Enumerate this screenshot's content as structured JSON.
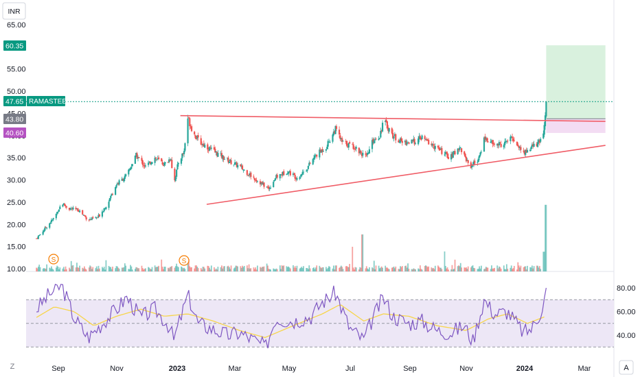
{
  "currency_button": "INR",
  "ticker": "RAMASTEEL",
  "corner_left": "Z",
  "corner_right": "A",
  "colors": {
    "up": "#26a69a",
    "down": "#ef5350",
    "trendline": "#f05c66",
    "rsi_line": "#7e57c2",
    "rsi_ma": "#f7d54a",
    "rsi_band": "#ede7f6",
    "target_zone": "#d9f1de",
    "stop_zone": "#f3dcf3",
    "last_price_tag": "#089981",
    "entry_tag": "#787b86",
    "stop_tag": "#b553c2",
    "split_marker": "#f57c00"
  },
  "price_tags": {
    "target": "60.35",
    "last": "47.65",
    "entry": "43.80",
    "stop": "40.60"
  },
  "split_markers": [
    "S",
    "S"
  ],
  "chart_data": [
    {
      "type": "candlestick",
      "title": "",
      "y_axis_ticks": [
        "10.00",
        "15.00",
        "20.00",
        "25.00",
        "30.00",
        "35.00",
        "40.00",
        "45.00",
        "50.00",
        "55.00",
        "65.00"
      ],
      "ylim": [
        10,
        66.5
      ],
      "x_axis_ticks": [
        "Sep",
        "Nov",
        "2023",
        "Mar",
        "May",
        "Jul",
        "Sep",
        "Nov",
        "2024",
        "Mar"
      ],
      "x_axis_bold": [
        "2023",
        "2024"
      ],
      "series": {
        "close_path": [
          [
            "2022-08-01",
            16.8
          ],
          [
            "2022-08-10",
            19.0
          ],
          [
            "2022-08-20",
            21.5
          ],
          [
            "2022-08-28",
            24.8
          ],
          [
            "2022-09-05",
            23.5
          ],
          [
            "2022-09-15",
            23.2
          ],
          [
            "2022-09-25",
            21.0
          ],
          [
            "2022-10-05",
            21.5
          ],
          [
            "2022-10-15",
            24.5
          ],
          [
            "2022-10-25",
            29.0
          ],
          [
            "2022-11-05",
            31.0
          ],
          [
            "2022-11-15",
            35.5
          ],
          [
            "2022-11-25",
            33.0
          ],
          [
            "2022-12-05",
            35.0
          ],
          [
            "2022-12-15",
            33.5
          ],
          [
            "2022-12-22",
            35.0
          ],
          [
            "2022-12-25",
            29.0
          ],
          [
            "2022-12-30",
            34.0
          ],
          [
            "2023-01-05",
            36.5
          ],
          [
            "2023-01-09",
            44.0
          ],
          [
            "2023-01-15",
            40.5
          ],
          [
            "2023-01-22",
            38.5
          ],
          [
            "2023-02-05",
            36.5
          ],
          [
            "2023-02-20",
            34.5
          ],
          [
            "2023-03-05",
            33.0
          ],
          [
            "2023-03-20",
            30.5
          ],
          [
            "2023-04-05",
            28.0
          ],
          [
            "2023-04-12",
            30.5
          ],
          [
            "2023-04-25",
            32.0
          ],
          [
            "2023-05-05",
            30.5
          ],
          [
            "2023-05-15",
            32.5
          ],
          [
            "2023-05-25",
            35.5
          ],
          [
            "2023-06-05",
            37.5
          ],
          [
            "2023-06-15",
            41.5
          ],
          [
            "2023-06-22",
            38.5
          ],
          [
            "2023-07-05",
            37.5
          ],
          [
            "2023-07-18",
            35.0
          ],
          [
            "2023-07-25",
            39.0
          ],
          [
            "2023-08-01",
            40.0
          ],
          [
            "2023-08-05",
            43.5
          ],
          [
            "2023-08-15",
            40.0
          ],
          [
            "2023-08-25",
            38.5
          ],
          [
            "2023-09-05",
            38.5
          ],
          [
            "2023-09-15",
            39.5
          ],
          [
            "2023-09-25",
            38.0
          ],
          [
            "2023-10-05",
            36.5
          ],
          [
            "2023-10-15",
            35.0
          ],
          [
            "2023-10-25",
            37.5
          ],
          [
            "2023-11-05",
            33.0
          ],
          [
            "2023-11-15",
            35.0
          ],
          [
            "2023-11-20",
            39.5
          ],
          [
            "2023-11-30",
            38.0
          ],
          [
            "2023-12-10",
            38.0
          ],
          [
            "2023-12-20",
            39.5
          ],
          [
            "2024-01-01",
            36.0
          ],
          [
            "2024-01-10",
            37.5
          ],
          [
            "2024-01-18",
            38.5
          ],
          [
            "2024-01-22",
            40.5
          ],
          [
            "2024-01-25",
            47.65
          ]
        ],
        "position": {
          "entry": 43.8,
          "target": 60.35,
          "stop": 40.6,
          "start": "2024-01-25",
          "end": "2024-03-28"
        }
      },
      "trendlines": [
        {
          "name": "resistance",
          "from": [
            "2023-01-01",
            44.5
          ],
          "to": [
            "2024-03-28",
            43.2
          ]
        },
        {
          "name": "support",
          "from": [
            "2023-01-29",
            24.5
          ],
          "to": [
            "2024-03-28",
            37.8
          ]
        }
      ],
      "volume": {
        "spikes": [
          [
            "2023-01-09",
            1.0
          ],
          [
            "2023-07-02",
            2.0
          ],
          [
            "2023-07-14",
            3.0
          ],
          [
            "2023-10-08",
            1.6
          ],
          [
            "2024-01-22",
            1.6
          ],
          [
            "2024-01-25",
            5.4
          ]
        ]
      }
    },
    {
      "type": "line",
      "title": "",
      "y_axis_ticks": [
        "40.00",
        "60.00",
        "80.00"
      ],
      "ylim": [
        28,
        84
      ],
      "band": [
        30,
        70
      ],
      "midline": 50,
      "series": [
        {
          "name": "",
          "values_path": [
            [
              "2022-08-01",
              62
            ],
            [
              "2022-08-15",
              75
            ],
            [
              "2022-08-28",
              82
            ],
            [
              "2022-09-10",
              55
            ],
            [
              "2022-09-25",
              38
            ],
            [
              "2022-10-10",
              50
            ],
            [
              "2022-10-25",
              62
            ],
            [
              "2022-11-05",
              72
            ],
            [
              "2022-11-20",
              55
            ],
            [
              "2022-12-05",
              62
            ],
            [
              "2022-12-20",
              48
            ],
            [
              "2022-12-25",
              36
            ],
            [
              "2023-01-09",
              74
            ],
            [
              "2023-01-20",
              50
            ],
            [
              "2023-02-05",
              45
            ],
            [
              "2023-02-20",
              40
            ],
            [
              "2023-03-05",
              42
            ],
            [
              "2023-03-20",
              36
            ],
            [
              "2023-04-02",
              30
            ],
            [
              "2023-04-12",
              54
            ],
            [
              "2023-05-01",
              52
            ],
            [
              "2023-05-20",
              56
            ],
            [
              "2023-06-01",
              68
            ],
            [
              "2023-06-15",
              76
            ],
            [
              "2023-06-30",
              46
            ],
            [
              "2023-07-15",
              36
            ],
            [
              "2023-07-25",
              55
            ],
            [
              "2023-08-05",
              72
            ],
            [
              "2023-08-15",
              56
            ],
            [
              "2023-09-01",
              50
            ],
            [
              "2023-09-15",
              52
            ],
            [
              "2023-10-01",
              44
            ],
            [
              "2023-10-15",
              42
            ],
            [
              "2023-10-30",
              48
            ],
            [
              "2023-11-08",
              35
            ],
            [
              "2023-11-20",
              70
            ],
            [
              "2023-12-01",
              58
            ],
            [
              "2023-12-15",
              60
            ],
            [
              "2024-01-01",
              42
            ],
            [
              "2024-01-10",
              46
            ],
            [
              "2024-01-18",
              58
            ],
            [
              "2024-01-22",
              66
            ],
            [
              "2024-01-25",
              78
            ]
          ]
        },
        {
          "name": "",
          "values_path": [
            [
              "2022-08-01",
              55
            ],
            [
              "2022-08-20",
              64
            ],
            [
              "2022-09-10",
              60
            ],
            [
              "2022-10-01",
              48
            ],
            [
              "2022-10-25",
              56
            ],
            [
              "2022-11-20",
              62
            ],
            [
              "2022-12-15",
              56
            ],
            [
              "2023-01-09",
              58
            ],
            [
              "2023-02-05",
              52
            ],
            [
              "2023-03-05",
              44
            ],
            [
              "2023-04-01",
              38
            ],
            [
              "2023-05-01",
              48
            ],
            [
              "2023-06-01",
              58
            ],
            [
              "2023-06-20",
              66
            ],
            [
              "2023-07-15",
              52
            ],
            [
              "2023-08-05",
              58
            ],
            [
              "2023-09-01",
              56
            ],
            [
              "2023-10-01",
              48
            ],
            [
              "2023-11-01",
              44
            ],
            [
              "2023-11-25",
              54
            ],
            [
              "2023-12-15",
              58
            ],
            [
              "2024-01-05",
              50
            ],
            [
              "2024-01-25",
              56
            ]
          ]
        }
      ]
    }
  ]
}
